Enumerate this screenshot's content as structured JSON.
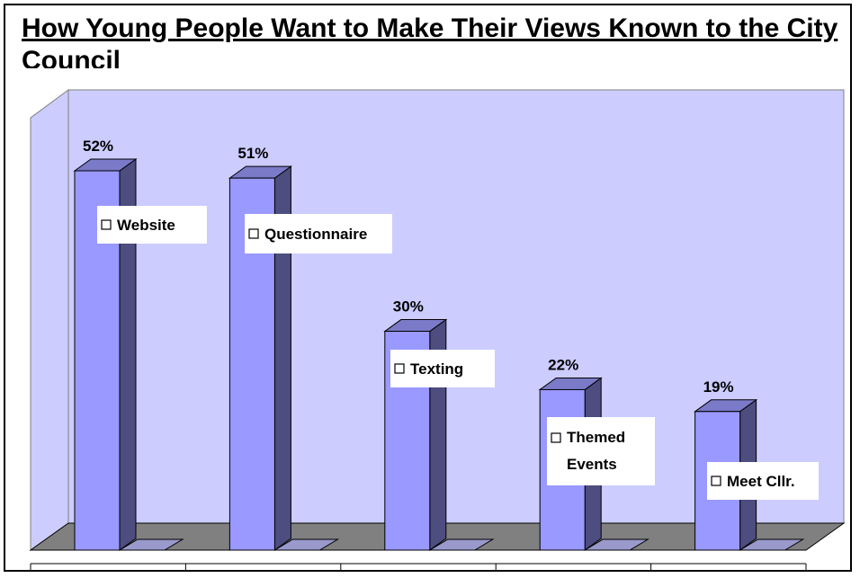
{
  "chart_data": {
    "type": "bar",
    "title": "How Young People Want to Make Their Views Known to the City Council",
    "categories": [
      "Website",
      "Questionnaire",
      "Texting",
      "Themed Events",
      "Meet Cllr."
    ],
    "values": [
      52,
      51,
      30,
      22,
      19
    ],
    "value_labels": [
      "52%",
      "51%",
      "30%",
      "22%",
      "19%"
    ],
    "label_lines": [
      [
        "Website"
      ],
      [
        "Questionnaire"
      ],
      [
        "Texting"
      ],
      [
        "Themed",
        "Events"
      ],
      [
        "Meet Cllr."
      ]
    ],
    "ylim": [
      0,
      55
    ],
    "style": "3d",
    "grid": false,
    "legend": "none",
    "colors": {
      "bar_front": "#9999FF",
      "bar_side": "#4D4D80",
      "bar_top": "#7A7AC8",
      "wall": "#CCCCFF",
      "floor": "#808080"
    }
  }
}
